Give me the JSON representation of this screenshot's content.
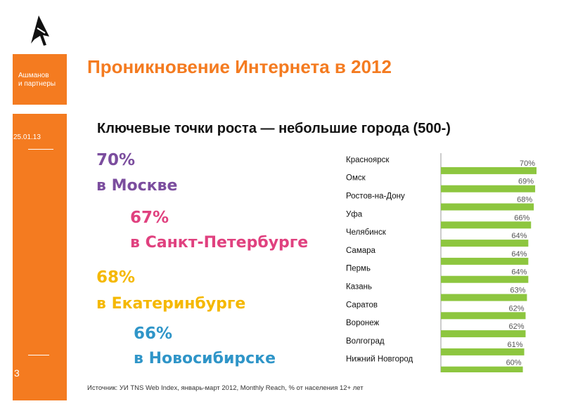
{
  "brand": {
    "line1": "Ашманов",
    "line2": "и партнеры"
  },
  "slide": {
    "date": "25.01.13",
    "page_number": "3",
    "accent_color": "#f47b20"
  },
  "title": "Проникновение Интернета  в 2012",
  "subtitle": "Ключевые точки роста — небольшие города (500-)",
  "highlights": {
    "moscow": {
      "percent": "70%",
      "city": "в Москве",
      "color": "#7b4d9e"
    },
    "spb": {
      "percent": "67%",
      "city": "в Санкт-Петербурге",
      "color": "#e0417f"
    },
    "ekb": {
      "percent": "68%",
      "city": "в Екатеринбурге",
      "color": "#f5b800"
    },
    "nsk": {
      "percent": "66%",
      "city": "в Новосибирске",
      "color": "#2f95c8"
    }
  },
  "chart_data": {
    "type": "bar",
    "orientation": "horizontal",
    "bar_color": "#8dc63f",
    "categories": [
      "Красноярск",
      "Омск",
      "Ростов-на-Дону",
      "Уфа",
      "Челябинск",
      "Самара",
      "Пермь",
      "Казань",
      "Саратов",
      "Воронеж",
      "Волгоград",
      "Нижний Новгород"
    ],
    "values": [
      70,
      69,
      68,
      66,
      64,
      64,
      64,
      63,
      62,
      62,
      61,
      60
    ],
    "labels": [
      "70%",
      "69%",
      "68%",
      "66%",
      "64%",
      "64%",
      "64%",
      "63%",
      "62%",
      "62%",
      "61%",
      "60%"
    ]
  },
  "source": "Источник: УИ TNS Web Index, январь-март 2012, Monthly Reach, % от населения 12+ лет"
}
